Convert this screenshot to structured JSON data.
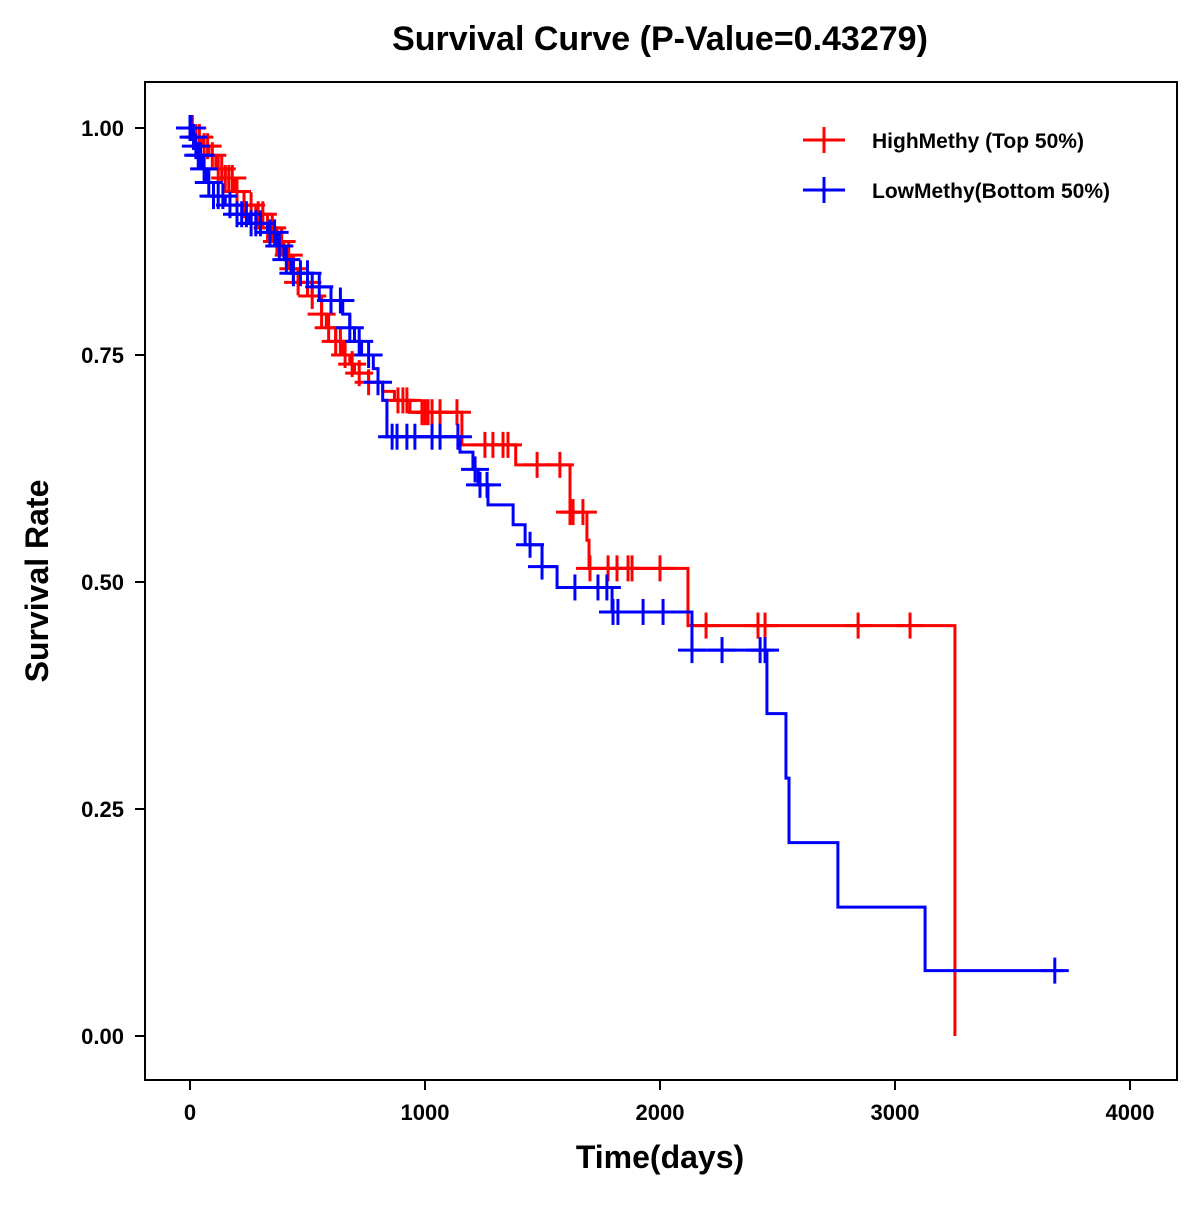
{
  "chart_data": {
    "type": "line",
    "subtype": "kaplan-meier",
    "title": "Survival Curve (P-Value=0.43279)",
    "xlabel": "Time(days)",
    "ylabel": "Survival Rate",
    "xlim": [
      -200,
      4200
    ],
    "ylim": [
      -0.05,
      1.05
    ],
    "xticks": [
      0,
      1000,
      2000,
      3000,
      4000
    ],
    "xtick_labels": [
      "0",
      "1000",
      "2000",
      "3000",
      "4000"
    ],
    "yticks": [
      0,
      0.25,
      0.5,
      0.75,
      1.0
    ],
    "ytick_labels": [
      "0.00",
      "0.25",
      "0.50",
      "0.75",
      "1.00"
    ],
    "grid": false,
    "legend_position": "top-right",
    "series": [
      {
        "name": "HighMethy (Top 50%)",
        "color": "#FF0000",
        "end_time": 3255,
        "steps": [
          [
            0,
            1.0
          ],
          [
            20,
            0.99
          ],
          [
            50,
            0.98
          ],
          [
            80,
            0.97
          ],
          [
            110,
            0.955
          ],
          [
            150,
            0.945
          ],
          [
            190,
            0.93
          ],
          [
            230,
            0.915
          ],
          [
            280,
            0.905
          ],
          [
            330,
            0.89
          ],
          [
            370,
            0.875
          ],
          [
            400,
            0.86
          ],
          [
            430,
            0.845
          ],
          [
            460,
            0.83
          ],
          [
            520,
            0.815
          ],
          [
            560,
            0.795
          ],
          [
            580,
            0.78
          ],
          [
            620,
            0.765
          ],
          [
            650,
            0.75
          ],
          [
            680,
            0.74
          ],
          [
            700,
            0.73
          ],
          [
            760,
            0.72
          ],
          [
            820,
            0.71
          ],
          [
            870,
            0.7
          ],
          [
            936,
            0.687
          ],
          [
            1157,
            0.651
          ],
          [
            1386,
            0.629
          ],
          [
            1617,
            0.577
          ],
          [
            1689,
            0.546
          ],
          [
            1698,
            0.515
          ],
          [
            2119,
            0.452
          ],
          [
            3255,
            0.0
          ]
        ],
        "censored_times": [
          10,
          25,
          40,
          60,
          75,
          95,
          120,
          135,
          150,
          165,
          180,
          200,
          230,
          260,
          290,
          310,
          330,
          350,
          370,
          390,
          420,
          440,
          460,
          500,
          520,
          560,
          590,
          620,
          640,
          660,
          690,
          720,
          760,
          885,
          906,
          923,
          987,
          1000,
          1013,
          1030,
          1064,
          1136,
          1255,
          1289,
          1332,
          1353,
          1477,
          1574,
          1617,
          1630,
          1672,
          1702,
          1779,
          1817,
          1864,
          1881,
          2000,
          2196,
          2417,
          2447,
          2843,
          3064
        ]
      },
      {
        "name": "LowMethy(Bottom 50%)",
        "color": "#0000FF",
        "end_time": 3715,
        "steps": [
          [
            0,
            1.0
          ],
          [
            10,
            0.99
          ],
          [
            20,
            0.98
          ],
          [
            30,
            0.97
          ],
          [
            50,
            0.955
          ],
          [
            70,
            0.94
          ],
          [
            100,
            0.925
          ],
          [
            150,
            0.915
          ],
          [
            200,
            0.905
          ],
          [
            250,
            0.895
          ],
          [
            330,
            0.885
          ],
          [
            370,
            0.87
          ],
          [
            400,
            0.855
          ],
          [
            430,
            0.84
          ],
          [
            520,
            0.825
          ],
          [
            600,
            0.81
          ],
          [
            650,
            0.795
          ],
          [
            680,
            0.78
          ],
          [
            700,
            0.765
          ],
          [
            730,
            0.75
          ],
          [
            780,
            0.735
          ],
          [
            800,
            0.72
          ],
          [
            820,
            0.7
          ],
          [
            838,
            0.66
          ],
          [
            1149,
            0.643
          ],
          [
            1204,
            0.624
          ],
          [
            1226,
            0.607
          ],
          [
            1268,
            0.585
          ],
          [
            1375,
            0.563
          ],
          [
            1426,
            0.541
          ],
          [
            1498,
            0.517
          ],
          [
            1562,
            0.494
          ],
          [
            1796,
            0.467
          ],
          [
            2136,
            0.425
          ],
          [
            2455,
            0.355
          ],
          [
            2536,
            0.284
          ],
          [
            2549,
            0.213
          ],
          [
            2757,
            0.142
          ],
          [
            3128,
            0.072
          ]
        ],
        "censored_times": [
          0,
          5,
          15,
          25,
          35,
          45,
          60,
          80,
          100,
          120,
          140,
          170,
          200,
          220,
          240,
          260,
          280,
          300,
          340,
          360,
          380,
          410,
          440,
          470,
          500,
          550,
          600,
          640,
          680,
          720,
          760,
          800,
          860,
          881,
          923,
          957,
          1030,
          1064,
          1140,
          1213,
          1234,
          1264,
          1447,
          1498,
          1638,
          1736,
          1774,
          1800,
          1821,
          1928,
          2013,
          2136,
          2264,
          2426,
          2447,
          3680
        ]
      }
    ]
  }
}
